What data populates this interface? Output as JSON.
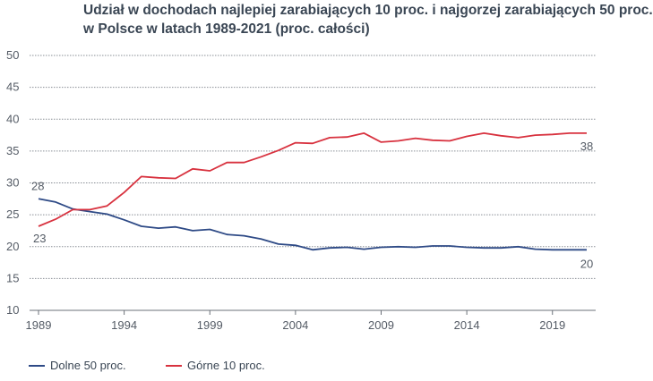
{
  "title_lines": [
    "Udział w dochodach najlepiej zarabiających 10 proc. i najgorzej zarabiających 50 proc.",
    "w Polsce w latach 1989-2021 (proc. całości)"
  ],
  "colors": {
    "bottom50": "#2e4a86",
    "top10": "#d8323f",
    "grid": "#8a8f96",
    "axis": "#6b7078"
  },
  "chart_data": {
    "type": "line",
    "title": "Udział w dochodach najlepiej zarabiających 10 proc. i najgorzej zarabiających 50 proc. w Polsce w latach 1989-2021 (proc. całości)",
    "x": [
      1989,
      1990,
      1991,
      1992,
      1993,
      1994,
      1995,
      1996,
      1997,
      1998,
      1999,
      2000,
      2001,
      2002,
      2003,
      2004,
      2005,
      2006,
      2007,
      2008,
      2009,
      2010,
      2011,
      2012,
      2013,
      2014,
      2015,
      2016,
      2017,
      2018,
      2019,
      2020,
      2021
    ],
    "series": [
      {
        "name": "Dolne 50 proc.",
        "color": "#2e4a86",
        "values": [
          27.5,
          27.0,
          25.9,
          25.5,
          25.1,
          24.2,
          23.2,
          22.9,
          23.1,
          22.5,
          22.7,
          21.9,
          21.7,
          21.2,
          20.4,
          20.2,
          19.5,
          19.8,
          19.9,
          19.6,
          19.9,
          20.0,
          19.9,
          20.1,
          20.1,
          19.9,
          19.8,
          19.8,
          20.0,
          19.6,
          19.5,
          19.5,
          19.5
        ]
      },
      {
        "name": "Górne 10 proc.",
        "color": "#d8323f",
        "values": [
          23.2,
          24.3,
          25.8,
          25.8,
          26.4,
          28.5,
          31.0,
          30.8,
          30.7,
          32.2,
          31.9,
          33.2,
          33.2,
          34.1,
          35.1,
          36.3,
          36.2,
          37.1,
          37.2,
          37.8,
          36.4,
          36.6,
          37.0,
          36.7,
          36.6,
          37.3,
          37.8,
          37.4,
          37.1,
          37.5,
          37.6,
          37.8,
          37.8
        ]
      }
    ],
    "ylim": [
      10,
      50
    ],
    "yticks": [
      10,
      15,
      20,
      25,
      30,
      35,
      40,
      45,
      50
    ],
    "xlim": [
      1989,
      2021
    ],
    "xticks": [
      1989,
      1994,
      1999,
      2004,
      2009,
      2014,
      2019
    ],
    "annotations": {
      "bottom50_start": "28",
      "bottom50_end": "20",
      "top10_start": "23",
      "top10_end": "38"
    },
    "grid": true,
    "legend_position": "bottom-left"
  }
}
